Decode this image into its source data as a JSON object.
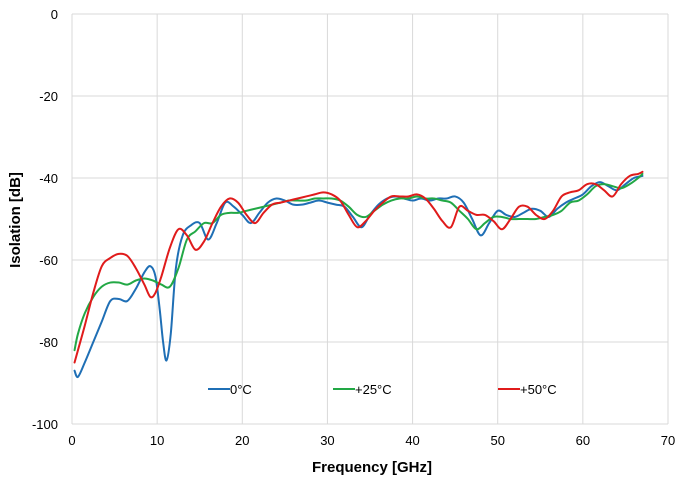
{
  "chart_data": {
    "type": "line",
    "xlabel": "Frequency [GHz]",
    "ylabel": "Isolation [dB]",
    "xlim": [
      0,
      70
    ],
    "ylim": [
      -100,
      0
    ],
    "xticks": [
      0,
      10,
      20,
      30,
      40,
      50,
      60,
      70
    ],
    "yticks": [
      0,
      -20,
      -40,
      -60,
      -80,
      -100
    ],
    "grid": "vertical and horizontal",
    "legend_position": "bottom-inside",
    "series": [
      {
        "name": "0°C",
        "color": "#1f6fb5",
        "x": [
          0.3,
          0.7,
          1.5,
          2.5,
          3.5,
          4.5,
          5.5,
          6.5,
          7.5,
          8.5,
          9.2,
          9.8,
          10.3,
          10.7,
          11.1,
          11.6,
          12.2,
          13,
          14,
          15,
          16,
          17,
          18,
          19,
          20,
          21,
          22,
          23,
          24,
          25,
          26,
          27,
          28,
          29,
          30,
          31,
          32,
          33,
          34,
          35,
          36,
          37,
          38,
          39,
          40,
          41,
          42,
          43,
          44,
          45,
          46,
          47,
          48,
          49,
          50,
          51,
          52,
          53,
          54,
          55,
          56,
          57,
          58,
          59,
          60,
          61,
          62,
          63,
          64,
          65,
          66,
          67
        ],
        "y": [
          -87,
          -88.5,
          -85,
          -80,
          -75,
          -70,
          -69.5,
          -70,
          -67,
          -63,
          -61.5,
          -64,
          -72,
          -80,
          -84.5,
          -78,
          -62,
          -54,
          -51.5,
          -51,
          -55,
          -51,
          -46,
          -47,
          -49,
          -51,
          -48.5,
          -46,
          -45,
          -45.5,
          -46.5,
          -46.5,
          -46,
          -45.5,
          -46,
          -46.5,
          -47,
          -49.5,
          -52,
          -49,
          -46.5,
          -45,
          -44.5,
          -45,
          -45.5,
          -45,
          -45.5,
          -45,
          -45,
          -44.5,
          -46,
          -50,
          -54,
          -51,
          -48,
          -49,
          -49.5,
          -48.5,
          -47.5,
          -48,
          -49.5,
          -47.5,
          -46,
          -45,
          -44,
          -42,
          -41,
          -42,
          -43,
          -41.5,
          -40,
          -39.5
        ]
      },
      {
        "name": "+25°C",
        "color": "#22a845",
        "x": [
          0.3,
          0.7,
          1.5,
          2.5,
          3.5,
          4.5,
          5.5,
          6.5,
          7.5,
          8.5,
          9.5,
          10.5,
          11.5,
          12.5,
          13.5,
          14.5,
          15.5,
          16.5,
          17.5,
          18.5,
          19.5,
          20.5,
          21.5,
          22.5,
          23.5,
          24.5,
          25.5,
          26.5,
          27.5,
          28.5,
          29.5,
          30.5,
          31.5,
          32.5,
          33.5,
          34.5,
          35.5,
          36.5,
          37.5,
          38.5,
          39.5,
          40.5,
          41.5,
          42.5,
          43.5,
          44.5,
          45.5,
          46.5,
          47.5,
          48.5,
          49.5,
          50.5,
          51.5,
          52.5,
          53.5,
          54.5,
          55.5,
          56.5,
          57.5,
          58.5,
          59.5,
          60.5,
          61.5,
          62.5,
          63.5,
          64.5,
          65.5,
          66.5,
          67
        ],
        "y": [
          -82,
          -78,
          -73,
          -69,
          -66.5,
          -65.5,
          -65.5,
          -66,
          -65,
          -64.5,
          -65,
          -66,
          -66.5,
          -62,
          -55,
          -53,
          -51,
          -51,
          -49,
          -48.5,
          -48.5,
          -48,
          -47.5,
          -47,
          -46.5,
          -46,
          -45.5,
          -45.5,
          -45.5,
          -45,
          -45,
          -45,
          -45.5,
          -47,
          -49,
          -49.5,
          -48,
          -46.5,
          -45.5,
          -45,
          -45,
          -44.5,
          -45,
          -45,
          -45.5,
          -46,
          -48,
          -50,
          -52.5,
          -51,
          -49.5,
          -49.5,
          -50,
          -50,
          -50,
          -50,
          -49.5,
          -49,
          -48,
          -46,
          -45.5,
          -44,
          -42,
          -41.5,
          -42,
          -42.5,
          -41.5,
          -40,
          -39
        ]
      },
      {
        "name": "+50°C",
        "color": "#e01b1b",
        "x": [
          0.3,
          0.7,
          1.5,
          2.5,
          3.5,
          4.5,
          5.5,
          6.5,
          7.5,
          8.5,
          9.2,
          9.8,
          10.5,
          11.5,
          12.5,
          13.5,
          14.5,
          15.5,
          16.5,
          17.5,
          18.5,
          19.5,
          20.5,
          21.5,
          22.5,
          23.5,
          24.5,
          25.5,
          26.5,
          27.5,
          28.5,
          29.5,
          30.5,
          31.5,
          32.5,
          33.5,
          34.5,
          35.5,
          36.5,
          37.5,
          38.5,
          39.5,
          40.5,
          41.5,
          42.5,
          43.5,
          44.5,
          45.5,
          46.5,
          47.5,
          48.5,
          49.5,
          50.5,
          51.5,
          52.5,
          53.5,
          54.5,
          55.5,
          56.5,
          57.5,
          58.5,
          59.5,
          60.5,
          61.5,
          62.5,
          63.5,
          64.5,
          65.5,
          66.5,
          67
        ],
        "y": [
          -85,
          -82,
          -76,
          -68,
          -61.5,
          -59.5,
          -58.5,
          -59,
          -62,
          -66,
          -69,
          -68,
          -64,
          -57,
          -52.5,
          -54,
          -57.5,
          -55.5,
          -51,
          -47,
          -45,
          -46,
          -49,
          -51,
          -48.5,
          -46.5,
          -46,
          -45.5,
          -45,
          -44.5,
          -44,
          -43.5,
          -44,
          -45.5,
          -49,
          -52,
          -50.5,
          -48,
          -46,
          -44.5,
          -44.5,
          -44.5,
          -44,
          -45,
          -47.5,
          -50.5,
          -52,
          -47,
          -48,
          -49,
          -49,
          -50.5,
          -52.5,
          -50,
          -47,
          -47,
          -49,
          -50,
          -48,
          -44.5,
          -43.5,
          -43,
          -41.5,
          -41.5,
          -43,
          -44.5,
          -41.5,
          -39.5,
          -39,
          -38.5
        ]
      }
    ]
  }
}
